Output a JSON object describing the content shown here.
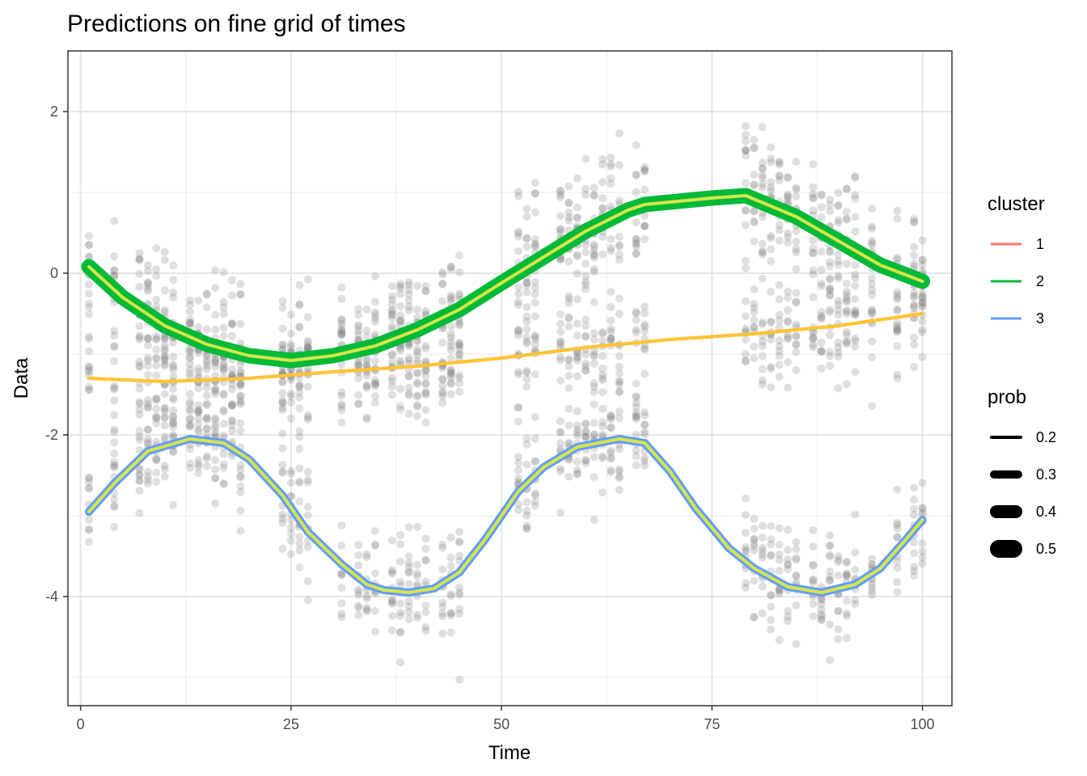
{
  "chart_data": {
    "type": "scatter",
    "title": "Predictions on fine grid of times",
    "xlabel": "Time",
    "ylabel": "Data",
    "xlim": [
      -1.5,
      103.5
    ],
    "ylim": [
      -5.35,
      2.75
    ],
    "x_ticks": [
      0,
      25,
      50,
      75,
      100
    ],
    "x_tick_labels": [
      "0",
      "25",
      "50",
      "75",
      "100"
    ],
    "y_ticks": [
      2,
      0,
      -2,
      -4
    ],
    "y_tick_labels": [
      "2",
      "0",
      "-2",
      "-4"
    ],
    "grid": true,
    "point_color": "#808080",
    "point_opacity": 0.25,
    "observation_times": [
      1,
      4,
      7,
      8,
      9,
      10,
      11,
      13,
      14,
      15,
      16,
      17,
      18,
      19,
      24,
      25,
      26,
      27,
      31,
      33,
      34,
      35,
      37,
      38,
      39,
      40,
      41,
      43,
      44,
      45,
      52,
      53,
      54,
      57,
      58,
      59,
      60,
      61,
      62,
      63,
      64,
      66,
      67,
      79,
      80,
      81,
      82,
      83,
      84,
      85,
      87,
      88,
      89,
      90,
      91,
      92,
      94,
      97,
      99,
      100
    ],
    "observation_note": "Noisy observations scattered around the three cluster curves at each observation time",
    "series": [
      {
        "name": "1",
        "color": "#F8766D",
        "prob": 0.2,
        "x": [
          1,
          10,
          20,
          30,
          40,
          50,
          60,
          70,
          80,
          90,
          100
        ],
        "y": [
          -1.3,
          -1.34,
          -1.3,
          -1.22,
          -1.15,
          -1.05,
          -0.92,
          -0.82,
          -0.75,
          -0.65,
          -0.5
        ]
      },
      {
        "name": "2",
        "color": "#00BA38",
        "prob": 0.45,
        "x": [
          1,
          5,
          10,
          15,
          20,
          25,
          30,
          35,
          40,
          45,
          50,
          55,
          60,
          65,
          67,
          70,
          75,
          79,
          85,
          90,
          95,
          100
        ],
        "y": [
          0.08,
          -0.3,
          -0.65,
          -0.88,
          -1.02,
          -1.08,
          -1.02,
          -0.9,
          -0.7,
          -0.45,
          -0.12,
          0.2,
          0.52,
          0.78,
          0.85,
          0.88,
          0.93,
          0.96,
          0.7,
          0.4,
          0.1,
          -0.1
        ]
      },
      {
        "name": "3",
        "color": "#619CFF",
        "prob": 0.3,
        "x": [
          1,
          4,
          8,
          13,
          17,
          20,
          24,
          27,
          31,
          34,
          36,
          39,
          42,
          45,
          48,
          52,
          55,
          59,
          64,
          67,
          70,
          73,
          77,
          80,
          84,
          88,
          92,
          95,
          98,
          100
        ],
        "y": [
          -2.95,
          -2.6,
          -2.2,
          -2.05,
          -2.1,
          -2.3,
          -2.75,
          -3.2,
          -3.6,
          -3.85,
          -3.92,
          -3.95,
          -3.9,
          -3.7,
          -3.3,
          -2.7,
          -2.4,
          -2.15,
          -2.05,
          -2.1,
          -2.45,
          -2.9,
          -3.4,
          -3.65,
          -3.88,
          -3.95,
          -3.85,
          -3.65,
          -3.3,
          -3.05
        ]
      }
    ],
    "legend": {
      "cluster_title": "cluster",
      "cluster_items": [
        {
          "label": "1",
          "color": "#F8766D"
        },
        {
          "label": "2",
          "color": "#00BA38"
        },
        {
          "label": "3",
          "color": "#619CFF"
        }
      ],
      "prob_title": "prob",
      "prob_items": [
        {
          "label": "0.2",
          "value": 0.2
        },
        {
          "label": "0.3",
          "value": 0.3
        },
        {
          "label": "0.4",
          "value": 0.4
        },
        {
          "label": "0.5",
          "value": 0.5
        }
      ],
      "placement": "right"
    },
    "highlight_line_color": "#D6E548"
  }
}
